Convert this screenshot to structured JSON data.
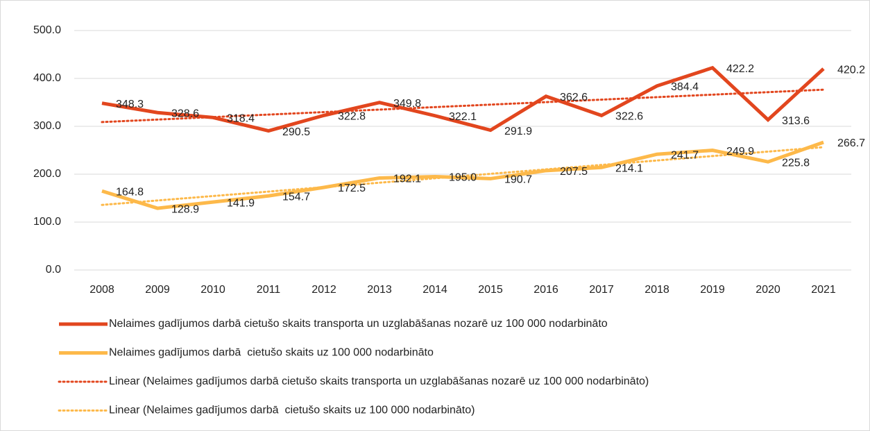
{
  "chart_data": {
    "type": "line",
    "categories": [
      "2008",
      "2009",
      "2010",
      "2011",
      "2012",
      "2013",
      "2014",
      "2015",
      "2016",
      "2017",
      "2018",
      "2019",
      "2020",
      "2021"
    ],
    "ylim": [
      0,
      500
    ],
    "yticks": [
      {
        "value": 0,
        "label": "0.0"
      },
      {
        "value": 100,
        "label": "100.0"
      },
      {
        "value": 200,
        "label": "200.0"
      },
      {
        "value": 300,
        "label": "300.0"
      },
      {
        "value": 400,
        "label": "400.0"
      },
      {
        "value": 500,
        "label": "500.0"
      }
    ],
    "grid": true,
    "legend": "bottom",
    "series": [
      {
        "name": "Nelaimes gadījumos darbā cietušo skaits transporta un uzglabāšanas nozarē uz 100 000 nodarbināto",
        "color": "#e2461e",
        "values": [
          348.3,
          328.6,
          318.4,
          290.5,
          322.8,
          349.8,
          322.1,
          291.9,
          362.6,
          322.6,
          384.4,
          422.2,
          313.6,
          420.2
        ],
        "value_labels": [
          "348.3",
          "328.6",
          "318.4",
          "290.5",
          "322.8",
          "349.8",
          "322.1",
          "291.9",
          "362.6",
          "322.6",
          "384.4",
          "422.2",
          "313.6",
          "420.2"
        ],
        "trendline": {
          "type": "linear",
          "name": "Linear (Nelaimes gadījumos darbā cietušo skaits transporta un uzglabāšanas nozarē uz 100 000 nodarbināto)"
        }
      },
      {
        "name": "Nelaimes gadījumos darbā  cietušo skaits uz 100 000 nodarbināto",
        "color": "#fdb94a",
        "values": [
          164.8,
          128.9,
          141.9,
          154.7,
          172.5,
          192.1,
          195.0,
          190.7,
          207.5,
          214.1,
          241.7,
          249.9,
          225.8,
          266.7
        ],
        "value_labels": [
          "164.8",
          "128.9",
          "141.9",
          "154.7",
          "172.5",
          "192.1",
          "195.0",
          "190.7",
          "207.5",
          "214.1",
          "241.7",
          "249.9",
          "225.8",
          "266.7"
        ],
        "trendline": {
          "type": "linear",
          "name": "Linear (Nelaimes gadījumos darbā  cietušo skaits uz 100 000 nodarbināto)"
        }
      }
    ]
  }
}
